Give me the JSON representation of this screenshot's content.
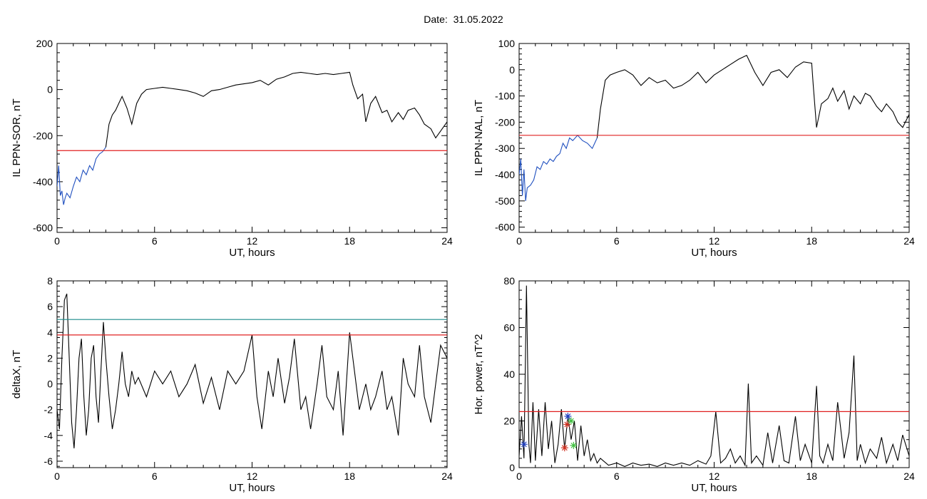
{
  "header": {
    "date_label": "Date:",
    "date_value": "31.05.2022"
  },
  "colors": {
    "trace": "#000000",
    "highlight": "#1f4fbf",
    "threshold": "#e02020",
    "threshold2": "#1a8a8a",
    "marker_blue": "#2040c0",
    "marker_red": "#d03020",
    "marker_green": "#40c040"
  },
  "chart_data": [
    {
      "id": "ppn-sor",
      "type": "line",
      "xlabel": "UT, hours",
      "ylabel": "IL PPN-SOR, nT",
      "xlim": [
        0,
        24
      ],
      "ylim": [
        -620,
        200
      ],
      "xticks": [
        0,
        6,
        12,
        18,
        24
      ],
      "yticks": [
        -600,
        -400,
        -200,
        0,
        200
      ],
      "threshold": -265,
      "series": [
        {
          "style": "blue",
          "x": [
            0,
            0.1,
            0.2,
            0.3,
            0.4,
            0.5,
            0.6,
            0.8,
            1.0,
            1.2,
            1.4,
            1.6,
            1.8,
            2.0,
            2.2,
            2.4,
            2.6,
            2.8,
            3.0
          ],
          "y": [
            -420,
            -330,
            -460,
            -440,
            -500,
            -470,
            -450,
            -470,
            -420,
            -380,
            -400,
            -350,
            -370,
            -330,
            -350,
            -300,
            -280,
            -270,
            -250
          ]
        },
        {
          "style": "black",
          "x": [
            3.0,
            3.2,
            3.4,
            3.6,
            3.8,
            4.0,
            4.3,
            4.6,
            4.9,
            5.2,
            5.5,
            6,
            6.5,
            7,
            7.5,
            8,
            8.5,
            9,
            9.5,
            10,
            10.5,
            11,
            11.5,
            12,
            12.5,
            13,
            13.5,
            14,
            14.5,
            15,
            15.5,
            16,
            16.5,
            17,
            17.5,
            18,
            18.2,
            18.5,
            18.8,
            19,
            19.3,
            19.6,
            20,
            20.3,
            20.6,
            21,
            21.3,
            21.6,
            22,
            22.3,
            22.6,
            23,
            23.3,
            23.6,
            24
          ],
          "y": [
            -250,
            -150,
            -110,
            -90,
            -60,
            -30,
            -80,
            -150,
            -60,
            -20,
            0,
            5,
            10,
            5,
            0,
            -5,
            -15,
            -30,
            -5,
            0,
            10,
            20,
            25,
            30,
            40,
            20,
            45,
            55,
            70,
            75,
            70,
            65,
            70,
            65,
            70,
            75,
            20,
            -40,
            -20,
            -140,
            -60,
            -30,
            -100,
            -90,
            -140,
            -100,
            -130,
            -90,
            -80,
            -110,
            -150,
            -170,
            -210,
            -180,
            -140
          ]
        }
      ]
    },
    {
      "id": "ppn-nal",
      "type": "line",
      "xlabel": "UT, hours",
      "ylabel": "IL PPN-NAL, nT",
      "xlim": [
        0,
        24
      ],
      "ylim": [
        -620,
        100
      ],
      "xticks": [
        0,
        6,
        12,
        18,
        24
      ],
      "yticks": [
        -600,
        -500,
        -400,
        -300,
        -200,
        -100,
        0,
        100
      ],
      "threshold": -250,
      "series": [
        {
          "style": "blue",
          "x": [
            0,
            0.1,
            0.2,
            0.3,
            0.4,
            0.5,
            0.7,
            0.9,
            1.1,
            1.3,
            1.5,
            1.7,
            1.9,
            2.1,
            2.3,
            2.5,
            2.7,
            2.9,
            3.1,
            3.3,
            3.6,
            3.9,
            4.2,
            4.5,
            4.8
          ],
          "y": [
            -400,
            -340,
            -480,
            -380,
            -500,
            -450,
            -440,
            -420,
            -370,
            -380,
            -350,
            -360,
            -340,
            -350,
            -330,
            -320,
            -280,
            -300,
            -260,
            -270,
            -250,
            -270,
            -280,
            -300,
            -260
          ]
        },
        {
          "style": "black",
          "x": [
            4.8,
            5.0,
            5.3,
            5.6,
            6,
            6.5,
            7,
            7.5,
            8,
            8.5,
            9,
            9.5,
            10,
            10.5,
            11,
            11.5,
            12,
            12.5,
            13,
            13.5,
            14,
            14.5,
            15,
            15.5,
            16,
            16.5,
            17,
            17.5,
            18,
            18.1,
            18.3,
            18.6,
            19,
            19.3,
            19.6,
            20,
            20.3,
            20.6,
            21,
            21.3,
            21.6,
            22,
            22.3,
            22.6,
            23,
            23.3,
            23.6,
            24
          ],
          "y": [
            -260,
            -150,
            -40,
            -20,
            -10,
            0,
            -20,
            -60,
            -30,
            -50,
            -40,
            -70,
            -60,
            -40,
            -10,
            -50,
            -20,
            0,
            20,
            40,
            55,
            -10,
            -60,
            -10,
            0,
            -30,
            10,
            30,
            25,
            -60,
            -220,
            -130,
            -110,
            -70,
            -120,
            -80,
            -150,
            -100,
            -130,
            -90,
            -100,
            -140,
            -160,
            -130,
            -160,
            -200,
            -220,
            -170
          ]
        }
      ]
    },
    {
      "id": "deltax",
      "type": "line",
      "xlabel": "UT, hours",
      "ylabel": "deltaX, nT",
      "xlim": [
        0,
        24
      ],
      "ylim": [
        -6.5,
        8
      ],
      "xticks": [
        0,
        6,
        12,
        18,
        24
      ],
      "yticks": [
        -6,
        -4,
        -2,
        0,
        2,
        4,
        6,
        8
      ],
      "threshold": 3.8,
      "threshold2": 5.0,
      "series": [
        {
          "style": "black",
          "x": [
            0,
            0.15,
            0.3,
            0.45,
            0.6,
            0.75,
            0.9,
            1.05,
            1.2,
            1.35,
            1.5,
            1.65,
            1.8,
            1.95,
            2.1,
            2.25,
            2.4,
            2.55,
            2.7,
            2.85,
            3.0,
            3.2,
            3.4,
            3.6,
            3.8,
            4.0,
            4.2,
            4.4,
            4.6,
            4.8,
            5.0,
            5.5,
            6,
            6.5,
            7,
            7.5,
            8,
            8.5,
            9,
            9.5,
            10,
            10.5,
            11,
            11.5,
            12,
            12.3,
            12.6,
            13,
            13.3,
            13.6,
            14,
            14.3,
            14.6,
            15,
            15.3,
            15.6,
            16,
            16.3,
            16.6,
            17,
            17.3,
            17.6,
            18,
            18.3,
            18.6,
            19,
            19.3,
            19.6,
            20,
            20.3,
            20.6,
            21,
            21.3,
            21.6,
            22,
            22.3,
            22.6,
            23,
            23.3,
            23.6,
            24
          ],
          "y": [
            -2,
            -3.5,
            2,
            6.5,
            7,
            2,
            -3,
            -5,
            -2,
            2,
            3.5,
            -1,
            -4,
            -2,
            2,
            3,
            -1,
            -3,
            1,
            4.8,
            2,
            -1,
            -3.5,
            -2,
            0,
            2.5,
            0,
            -1,
            1,
            0,
            0.5,
            -1,
            1,
            0,
            1,
            -1,
            0,
            1.5,
            -1.5,
            0.5,
            -2,
            1,
            0,
            1,
            3.8,
            -1,
            -3.5,
            1,
            -1,
            2,
            -1.5,
            0.5,
            3.5,
            -2,
            -1,
            -3.5,
            0,
            3,
            -1,
            -2,
            1,
            -4,
            4,
            1,
            -2,
            0,
            -2,
            -1,
            1,
            -2,
            -1,
            -4,
            2,
            0,
            -1,
            3,
            -1,
            -3,
            0,
            3,
            2
          ]
        }
      ]
    },
    {
      "id": "hor-power",
      "type": "line",
      "xlabel": "UT, hours",
      "ylabel": "Hor. power, nT^2",
      "xlim": [
        0,
        24
      ],
      "ylim": [
        0,
        80
      ],
      "xticks": [
        0,
        6,
        12,
        18,
        24
      ],
      "yticks": [
        0,
        20,
        40,
        60,
        80
      ],
      "threshold": 24,
      "markers": [
        {
          "x": 0.3,
          "y": 10,
          "color": "blue"
        },
        {
          "x": 2.8,
          "y": 8.5,
          "color": "red"
        },
        {
          "x": 2.95,
          "y": 18.5,
          "color": "red"
        },
        {
          "x": 3.0,
          "y": 22,
          "color": "blue"
        },
        {
          "x": 3.2,
          "y": 20,
          "color": "green"
        },
        {
          "x": 3.35,
          "y": 9.5,
          "color": "green"
        }
      ],
      "series": [
        {
          "style": "black",
          "x": [
            0,
            0.15,
            0.3,
            0.45,
            0.6,
            0.7,
            0.85,
            1.0,
            1.2,
            1.4,
            1.6,
            1.8,
            2.0,
            2.2,
            2.4,
            2.6,
            2.8,
            3.0,
            3.2,
            3.4,
            3.6,
            3.8,
            4.0,
            4.2,
            4.4,
            4.6,
            4.8,
            5.0,
            5.5,
            6,
            6.5,
            7,
            7.5,
            8,
            8.5,
            9,
            9.5,
            10,
            10.5,
            11,
            11.5,
            11.8,
            12.1,
            12.4,
            12.7,
            13,
            13.3,
            13.6,
            13.9,
            14.1,
            14.3,
            14.6,
            15,
            15.3,
            15.6,
            16,
            16.3,
            16.6,
            17,
            17.3,
            17.6,
            18,
            18.3,
            18.5,
            18.7,
            19,
            19.3,
            19.6,
            20,
            20.3,
            20.6,
            20.8,
            21,
            21.3,
            21.6,
            22,
            22.3,
            22.6,
            23,
            23.3,
            23.6,
            24
          ],
          "y": [
            5,
            22,
            4,
            78,
            10,
            2,
            28,
            3,
            25,
            5,
            28,
            8,
            20,
            2,
            10,
            25,
            8,
            22,
            12,
            20,
            3,
            18,
            5,
            12,
            3,
            6,
            2,
            4,
            1,
            2,
            0.5,
            2,
            1,
            1.5,
            0.5,
            2,
            1,
            2,
            1,
            3,
            1.5,
            5,
            24,
            2,
            4,
            8,
            2,
            5,
            1,
            36,
            2,
            5,
            1,
            15,
            2,
            18,
            3,
            2,
            22,
            3,
            10,
            2,
            35,
            5,
            2,
            10,
            3,
            28,
            4,
            15,
            48,
            3,
            10,
            2,
            8,
            4,
            13,
            2,
            10,
            3,
            14,
            5
          ]
        }
      ]
    }
  ]
}
